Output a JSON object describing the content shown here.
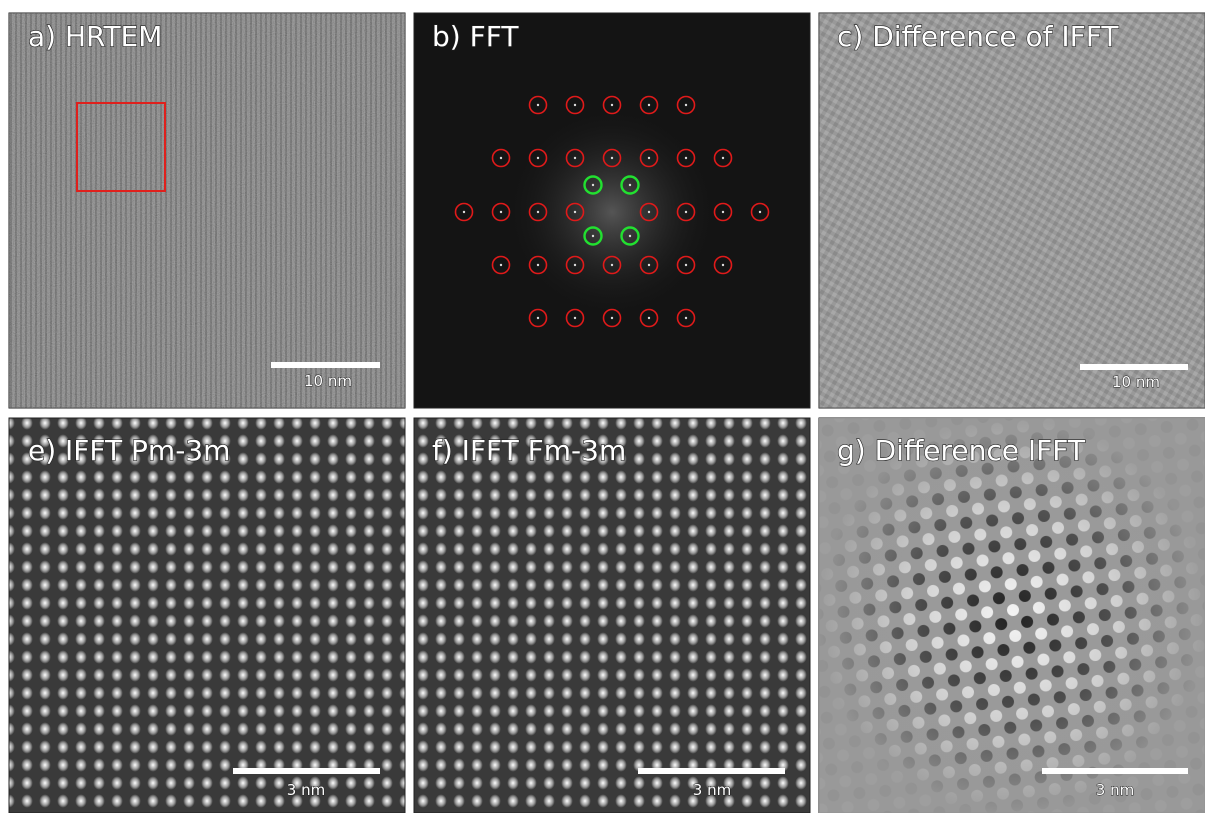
{
  "panels": [
    {
      "label": "a) HRTEM",
      "scale_bar": "10 nm"
    },
    {
      "label": "b) FFT"
    },
    {
      "label": "c) Difference of IFFT",
      "scale_bar": "10 nm"
    },
    {
      "label": "e) IFFT Pm-3m",
      "scale_bar": "3 nm"
    },
    {
      "label": "f) IFFT Fm-3m",
      "scale_bar": "3 nm"
    },
    {
      "label": "g) Difference IFFT",
      "scale_bar": "3 nm"
    }
  ]
}
